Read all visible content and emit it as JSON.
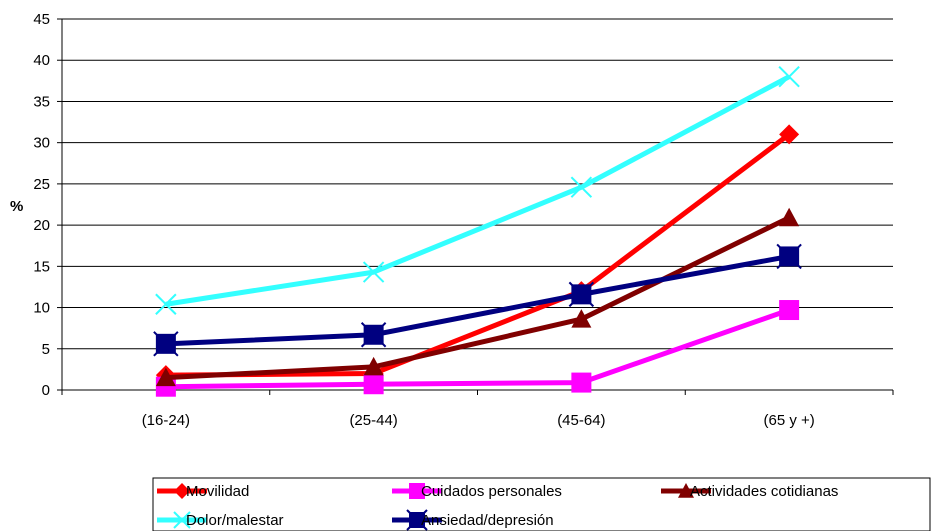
{
  "chart_data": {
    "type": "line",
    "title": "",
    "xlabel": "",
    "ylabel": "%",
    "ylim": [
      0,
      45
    ],
    "yticks": [
      0,
      5,
      10,
      15,
      20,
      25,
      30,
      35,
      40,
      45
    ],
    "grid": true,
    "legend_position": "bottom",
    "categories": [
      "(16-24)",
      "(25-44)",
      "(45-64)",
      "(65 y +)"
    ],
    "series": [
      {
        "name": "Movilidad",
        "color": "#ff0000",
        "marker": "diamond",
        "values": [
          1.8,
          2.0,
          12.0,
          31.0
        ]
      },
      {
        "name": "Cuidados personales",
        "color": "#ff00ff",
        "marker": "square",
        "values": [
          0.4,
          0.7,
          0.9,
          9.7
        ]
      },
      {
        "name": "Actividades cotidianas",
        "color": "#800000",
        "marker": "triangle",
        "values": [
          1.5,
          2.8,
          8.6,
          20.9
        ]
      },
      {
        "name": "Dolor/malestar",
        "color": "#33ffff",
        "marker": "x",
        "values": [
          10.4,
          14.3,
          24.6,
          38.0
        ]
      },
      {
        "name": "Ansiedad/depresión",
        "color": "#000080",
        "marker": "xsquare",
        "values": [
          5.6,
          6.7,
          11.6,
          16.2
        ]
      }
    ]
  }
}
